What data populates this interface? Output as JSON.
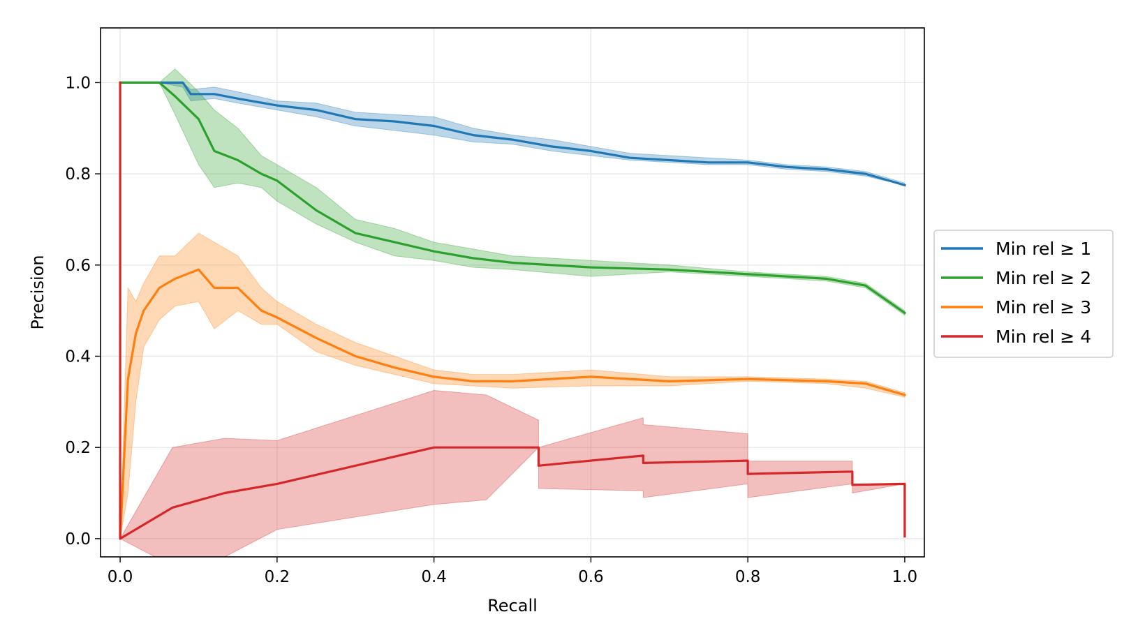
{
  "chart_data": {
    "type": "line",
    "title": "",
    "xlabel": "Recall",
    "ylabel": "Precision",
    "xlim": [
      -0.025,
      1.025
    ],
    "ylim": [
      -0.04,
      1.12
    ],
    "grid": true,
    "legend_position": "outside-right",
    "x_ticks": [
      {
        "value": 0.0,
        "label": "0.0"
      },
      {
        "value": 0.2,
        "label": "0.2"
      },
      {
        "value": 0.4,
        "label": "0.4"
      },
      {
        "value": 0.6,
        "label": "0.6"
      },
      {
        "value": 0.8,
        "label": "0.8"
      },
      {
        "value": 1.0,
        "label": "1.0"
      }
    ],
    "y_ticks": [
      {
        "value": 0.0,
        "label": "0.0"
      },
      {
        "value": 0.2,
        "label": "0.2"
      },
      {
        "value": 0.4,
        "label": "0.4"
      },
      {
        "value": 0.6,
        "label": "0.6"
      },
      {
        "value": 0.8,
        "label": "0.8"
      },
      {
        "value": 1.0,
        "label": "1.0"
      }
    ],
    "series": [
      {
        "name": "Min rel ≥ 1",
        "color": "#1f77b4",
        "x": [
          0.0,
          0.05,
          0.08,
          0.09,
          0.12,
          0.15,
          0.2,
          0.25,
          0.3,
          0.35,
          0.4,
          0.45,
          0.5,
          0.55,
          0.6,
          0.65,
          0.7,
          0.75,
          0.8,
          0.85,
          0.9,
          0.95,
          1.0
        ],
        "y": [
          1.0,
          1.0,
          1.0,
          0.975,
          0.975,
          0.965,
          0.95,
          0.94,
          0.92,
          0.915,
          0.905,
          0.885,
          0.875,
          0.86,
          0.85,
          0.835,
          0.83,
          0.825,
          0.825,
          0.815,
          0.81,
          0.8,
          0.775
        ],
        "lower": [
          1.0,
          1.0,
          0.99,
          0.96,
          0.965,
          0.955,
          0.94,
          0.925,
          0.905,
          0.895,
          0.885,
          0.87,
          0.865,
          0.85,
          0.84,
          0.83,
          0.825,
          0.82,
          0.82,
          0.81,
          0.805,
          0.795,
          0.775
        ],
        "upper": [
          1.0,
          1.0,
          1.0,
          0.985,
          0.99,
          0.98,
          0.96,
          0.955,
          0.935,
          0.93,
          0.925,
          0.9,
          0.885,
          0.875,
          0.86,
          0.845,
          0.84,
          0.835,
          0.83,
          0.82,
          0.815,
          0.805,
          0.78
        ]
      },
      {
        "name": "Min rel ≥ 2",
        "color": "#2ca02c",
        "x": [
          0.0,
          0.05,
          0.07,
          0.1,
          0.12,
          0.15,
          0.18,
          0.2,
          0.25,
          0.3,
          0.35,
          0.4,
          0.45,
          0.5,
          0.6,
          0.7,
          0.8,
          0.9,
          0.95,
          1.0
        ],
        "y": [
          1.0,
          1.0,
          0.97,
          0.92,
          0.85,
          0.83,
          0.8,
          0.785,
          0.72,
          0.67,
          0.65,
          0.63,
          0.615,
          0.605,
          0.595,
          0.59,
          0.58,
          0.57,
          0.555,
          0.495
        ],
        "lower": [
          1.0,
          1.0,
          0.93,
          0.82,
          0.77,
          0.78,
          0.77,
          0.74,
          0.69,
          0.65,
          0.62,
          0.61,
          0.595,
          0.59,
          0.575,
          0.585,
          0.575,
          0.565,
          0.55,
          0.49
        ],
        "upper": [
          1.0,
          1.0,
          1.03,
          0.98,
          0.94,
          0.9,
          0.84,
          0.82,
          0.77,
          0.7,
          0.68,
          0.65,
          0.635,
          0.62,
          0.61,
          0.6,
          0.585,
          0.575,
          0.56,
          0.5
        ]
      },
      {
        "name": "Min rel ≥ 3",
        "color": "#ff7f0e",
        "x": [
          0.0,
          0.01,
          0.02,
          0.03,
          0.05,
          0.07,
          0.1,
          0.12,
          0.15,
          0.18,
          0.2,
          0.25,
          0.3,
          0.35,
          0.4,
          0.45,
          0.5,
          0.6,
          0.7,
          0.8,
          0.9,
          0.95,
          1.0
        ],
        "y": [
          0.0,
          0.35,
          0.45,
          0.5,
          0.55,
          0.57,
          0.59,
          0.55,
          0.55,
          0.5,
          0.485,
          0.44,
          0.4,
          0.375,
          0.355,
          0.345,
          0.345,
          0.355,
          0.345,
          0.35,
          0.345,
          0.34,
          0.315
        ],
        "lower": [
          0.0,
          0.1,
          0.3,
          0.42,
          0.48,
          0.51,
          0.52,
          0.46,
          0.5,
          0.47,
          0.47,
          0.41,
          0.38,
          0.36,
          0.34,
          0.335,
          0.33,
          0.335,
          0.335,
          0.345,
          0.34,
          0.33,
          0.31
        ],
        "upper": [
          0.0,
          0.55,
          0.52,
          0.56,
          0.62,
          0.62,
          0.67,
          0.65,
          0.62,
          0.55,
          0.52,
          0.47,
          0.43,
          0.4,
          0.37,
          0.36,
          0.36,
          0.37,
          0.355,
          0.355,
          0.35,
          0.345,
          0.32
        ]
      },
      {
        "name": "Min rel ≥ 4",
        "color": "#d62728",
        "x": [
          0.0,
          0.0,
          0.0,
          0.0667,
          0.1333,
          0.2,
          0.4,
          0.4667,
          0.5333,
          0.5333,
          0.6667,
          0.6667,
          0.8,
          0.8,
          0.9333,
          0.9333,
          1.0,
          1.0
        ],
        "y": [
          1.0,
          0.0,
          0.0,
          0.068,
          0.1,
          0.12,
          0.2,
          0.2,
          0.2,
          0.16,
          0.182,
          0.166,
          0.171,
          0.142,
          0.147,
          0.118,
          0.12,
          0.005
        ],
        "lower": [
          0.0,
          0.0,
          0.0,
          -0.06,
          -0.04,
          0.02,
          0.075,
          0.085,
          0.2,
          0.11,
          0.105,
          0.09,
          0.12,
          0.09,
          0.12,
          0.1,
          0.12,
          0.12
        ],
        "upper": [
          0.0,
          0.0,
          0.0,
          0.2,
          0.22,
          0.215,
          0.325,
          0.315,
          0.26,
          0.2,
          0.265,
          0.25,
          0.23,
          0.17,
          0.17,
          0.12,
          0.12,
          0.12
        ]
      }
    ]
  }
}
